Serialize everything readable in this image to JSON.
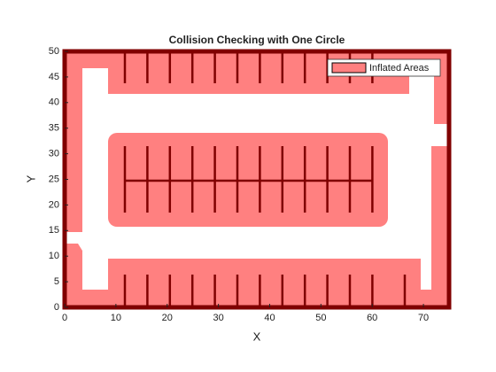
{
  "chart_data": {
    "type": "map",
    "title": "Collision Checking with One Circle",
    "xlabel": "X",
    "ylabel": "Y",
    "xlim": [
      0,
      75
    ],
    "ylim": [
      0,
      50
    ],
    "xticks": [
      0,
      10,
      20,
      30,
      40,
      50,
      60,
      70
    ],
    "yticks": [
      0,
      5,
      10,
      15,
      20,
      25,
      30,
      35,
      40,
      45,
      50
    ],
    "series": [
      {
        "name": "Inflated Areas",
        "color": "#ff8080"
      }
    ],
    "legend": "northeast"
  }
}
